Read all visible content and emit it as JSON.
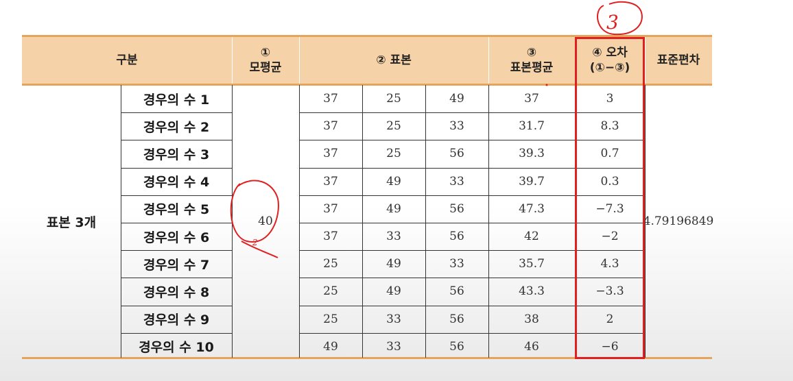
{
  "header": {
    "col_gubun": "구분",
    "col_pop_mean_num": "①",
    "col_pop_mean": "모평균",
    "col_sample": "② 표본",
    "col_sample_mean_num": "③",
    "col_sample_mean": "표본평균",
    "col_error_1": "④ 오차",
    "col_error_2": "(①−③)",
    "col_std": "표준편차"
  },
  "group_label": "표본 3개",
  "population_mean": "40",
  "std_dev": "4.79196849",
  "rows": [
    {
      "case": "경우의 수 1",
      "s1": "37",
      "s2": "25",
      "s3": "49",
      "mean": "37",
      "err": "3"
    },
    {
      "case": "경우의 수 2",
      "s1": "37",
      "s2": "25",
      "s3": "33",
      "mean": "31.7",
      "err": "8.3"
    },
    {
      "case": "경우의 수 3",
      "s1": "37",
      "s2": "25",
      "s3": "56",
      "mean": "39.3",
      "err": "0.7"
    },
    {
      "case": "경우의 수 4",
      "s1": "37",
      "s2": "49",
      "s3": "33",
      "mean": "39.7",
      "err": "0.3"
    },
    {
      "case": "경우의 수 5",
      "s1": "37",
      "s2": "49",
      "s3": "56",
      "mean": "47.3",
      "err": "−7.3"
    },
    {
      "case": "경우의 수 6",
      "s1": "37",
      "s2": "33",
      "s3": "56",
      "mean": "42",
      "err": "−2"
    },
    {
      "case": "경우의 수 7",
      "s1": "25",
      "s2": "49",
      "s3": "33",
      "mean": "35.7",
      "err": "4.3"
    },
    {
      "case": "경우의 수 8",
      "s1": "25",
      "s2": "49",
      "s3": "56",
      "mean": "43.3",
      "err": "−3.3"
    },
    {
      "case": "경우의 수 9",
      "s1": "25",
      "s2": "33",
      "s3": "56",
      "mean": "38",
      "err": "2"
    },
    {
      "case": "경우의 수 10",
      "s1": "49",
      "s2": "33",
      "s3": "56",
      "mean": "46",
      "err": "−6"
    }
  ],
  "annotations": {
    "circled_number_top": "3",
    "circled_number_left": "2",
    "highlight_color": "#e02020"
  }
}
